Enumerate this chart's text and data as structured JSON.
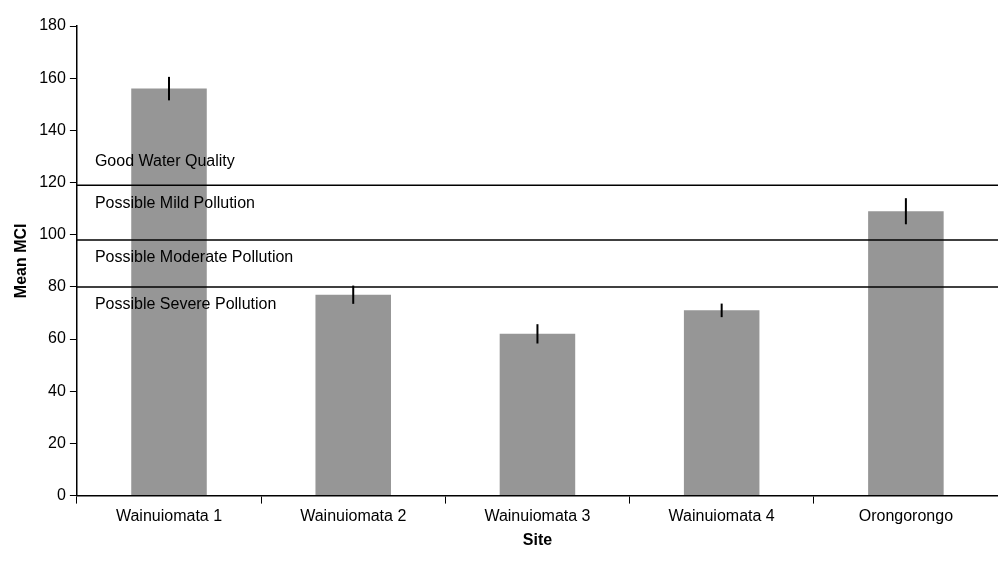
{
  "chart_data": {
    "type": "bar",
    "xlabel": "Site",
    "ylabel": "Mean MCI",
    "categories": [
      "Wainuiomata 1",
      "Wainuiomata 2",
      "Wainuiomata 3",
      "Wainuiomata 4",
      "Orongorongo"
    ],
    "values": [
      156,
      77,
      62,
      71,
      109
    ],
    "errors": [
      4.5,
      3.5,
      3.7,
      2.6,
      5
    ],
    "color": "#969696",
    "ylim": [
      0,
      180
    ],
    "yticks": [
      0,
      20,
      40,
      60,
      80,
      100,
      120,
      140,
      160,
      180
    ],
    "grid": false,
    "legend": false,
    "ref_lines": [
      {
        "axis": "y",
        "value": 119,
        "color": "#000000"
      },
      {
        "axis": "y",
        "value": 98,
        "color": "#000000"
      },
      {
        "axis": "y",
        "value": 80,
        "color": "#000000"
      }
    ],
    "annotations": [
      "Good Water Quality",
      "Possible Mild Pollution",
      "Possible Moderate Pollution",
      "Possible Severe Pollution"
    ]
  }
}
